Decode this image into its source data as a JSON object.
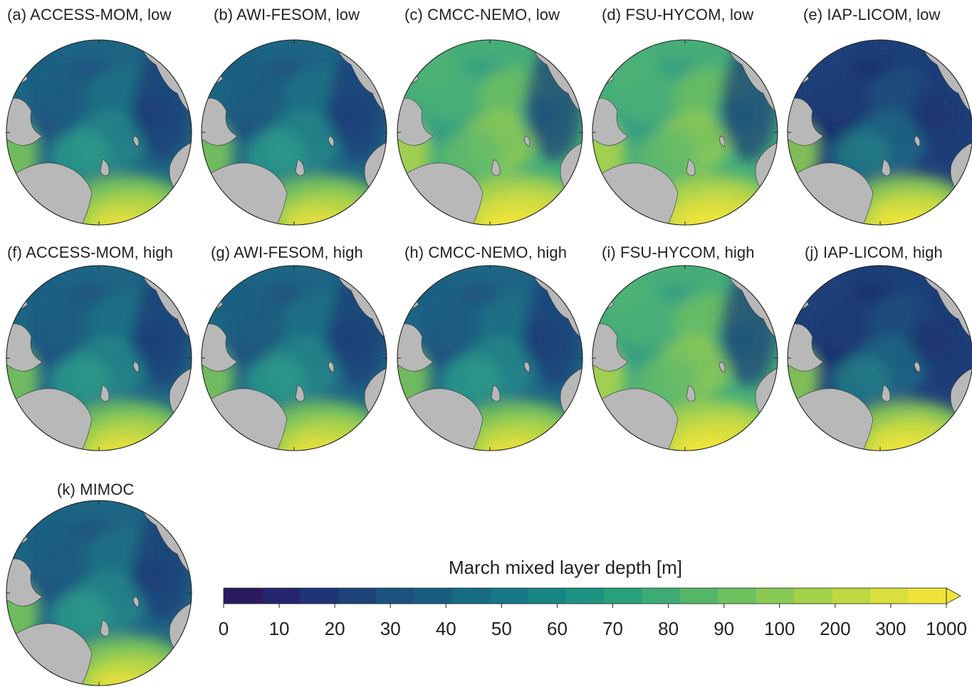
{
  "panels": [
    {
      "id": "a",
      "title": "(a) ACCESS-MOM, low",
      "palette": "mid"
    },
    {
      "id": "b",
      "title": "(b) AWI-FESOM, low",
      "palette": "mid"
    },
    {
      "id": "c",
      "title": "(c) CMCC-NEMO, low",
      "palette": "light"
    },
    {
      "id": "d",
      "title": "(d) FSU-HYCOM, low",
      "palette": "light"
    },
    {
      "id": "e",
      "title": "(e) IAP-LICOM, low",
      "palette": "dark"
    },
    {
      "id": "f",
      "title": "(f) ACCESS-MOM, high",
      "palette": "mid"
    },
    {
      "id": "g",
      "title": "(g) AWI-FESOM, high",
      "palette": "mid"
    },
    {
      "id": "h",
      "title": "(h) CMCC-NEMO, high",
      "palette": "mid"
    },
    {
      "id": "i",
      "title": "(i) FSU-HYCOM, high",
      "palette": "light"
    },
    {
      "id": "j",
      "title": "(j) IAP-LICOM, high",
      "palette": "dark"
    },
    {
      "id": "k",
      "title": "(k) MIMOC",
      "palette": "mid"
    }
  ],
  "colorbar": {
    "title": "March mixed layer depth [m]",
    "ticks": [
      "0",
      "10",
      "20",
      "30",
      "40",
      "50",
      "60",
      "70",
      "80",
      "90",
      "100",
      "200",
      "300",
      "1000"
    ],
    "extend": "max",
    "colors": [
      "#2b1a5e",
      "#25246f",
      "#1f3377",
      "#1d437a",
      "#1b517d",
      "#195d80",
      "#176b82",
      "#167884",
      "#178683",
      "#1c9380",
      "#29a07b",
      "#3dac73",
      "#55b769",
      "#6fc05e",
      "#89c954",
      "#a3d14a",
      "#bfd841",
      "#d9df3b",
      "#f0e43a"
    ]
  },
  "colors": {
    "land": "#b8b8b8",
    "deep_blue": "#1b3e78",
    "ocean_mid": "#1f6f86",
    "ocean_green": "#5bb86c",
    "atlantic_yellow": "#e6df45"
  }
}
